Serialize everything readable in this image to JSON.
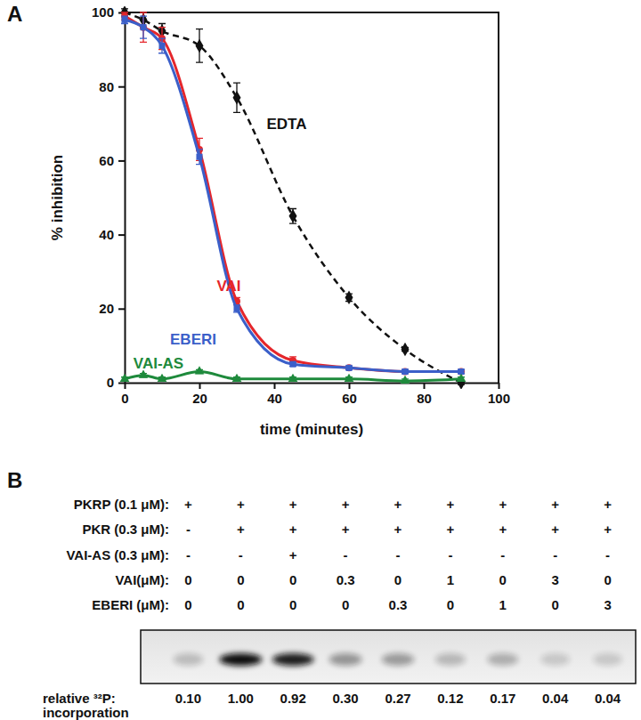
{
  "chart_data": [
    {
      "type": "line",
      "title": "A",
      "x_label": "time (minutes)",
      "y_label": "% inhibition",
      "xlim": [
        0,
        100
      ],
      "ylim": [
        0,
        100
      ],
      "xticks": [
        0,
        20,
        40,
        60,
        80,
        100
      ],
      "yticks": [
        0,
        20,
        40,
        60,
        80,
        100
      ],
      "grid": false,
      "x": [
        0,
        5,
        10,
        20,
        30,
        45,
        60,
        75,
        90
      ],
      "series": [
        {
          "name": "EDTA",
          "color": "#111111",
          "marker": "diamond",
          "line_style": "dashed",
          "values": [
            100,
            98,
            95,
            91,
            77,
            45,
            23,
            9,
            0
          ],
          "errors": [
            1,
            2,
            2,
            4.5,
            4,
            2,
            1,
            0.5,
            0.5
          ]
        },
        {
          "name": "VAI",
          "color": "#e5262b",
          "marker": "circle",
          "line_style": "solid",
          "values": [
            99,
            96,
            93,
            63,
            22,
            6,
            4,
            3,
            3
          ],
          "errors": [
            1,
            4,
            3,
            3,
            1,
            1,
            0.5,
            0.5,
            0.5
          ]
        },
        {
          "name": "EBERI",
          "color": "#3b5fc9",
          "marker": "square",
          "line_style": "solid",
          "values": [
            98,
            96,
            91,
            61,
            20,
            5,
            4,
            3,
            3
          ],
          "errors": [
            1,
            3,
            2,
            2,
            1,
            0.5,
            0.5,
            0.5,
            0.5
          ]
        },
        {
          "name": "VAI-AS",
          "color": "#1e8a3c",
          "marker": "triangle",
          "line_style": "solid",
          "values": [
            1,
            2,
            1,
            3,
            1,
            1,
            1,
            0.5,
            1
          ],
          "errors": [
            0.5,
            0.5,
            0.5,
            0.5,
            0.5,
            0.5,
            0.5,
            0.5,
            0.5
          ]
        }
      ]
    },
    {
      "type": "gel",
      "title": "B",
      "rows": [
        {
          "label": "PKRP (0.1 μM):",
          "cells": [
            "+",
            "+",
            "+",
            "+",
            "+",
            "+",
            "+",
            "+",
            "+"
          ]
        },
        {
          "label": "PKR (0.3 μM):",
          "cells": [
            "-",
            "+",
            "+",
            "+",
            "+",
            "+",
            "+",
            "+",
            "+"
          ]
        },
        {
          "label": "VAI-AS (0.3 μM):",
          "cells": [
            "-",
            "-",
            "+",
            "-",
            "-",
            "-",
            "-",
            "-",
            "-"
          ]
        },
        {
          "label": "VAI(μM):",
          "cells": [
            "0",
            "0",
            "0",
            "0.3",
            "0",
            "1",
            "0",
            "3",
            "0"
          ]
        },
        {
          "label": "EBERI (μM):",
          "cells": [
            "0",
            "0",
            "0",
            "0",
            "0.3",
            "0",
            "1",
            "0",
            "3"
          ]
        }
      ],
      "value_title": [
        "relative ³²P:",
        "incorporation"
      ],
      "values": [
        0.1,
        1.0,
        0.92,
        0.3,
        0.27,
        0.12,
        0.17,
        0.04,
        0.04
      ],
      "value_labels": [
        "0.10",
        "1.00",
        "0.92",
        "0.30",
        "0.27",
        "0.12",
        "0.17",
        "0.04",
        "0.04"
      ]
    }
  ]
}
